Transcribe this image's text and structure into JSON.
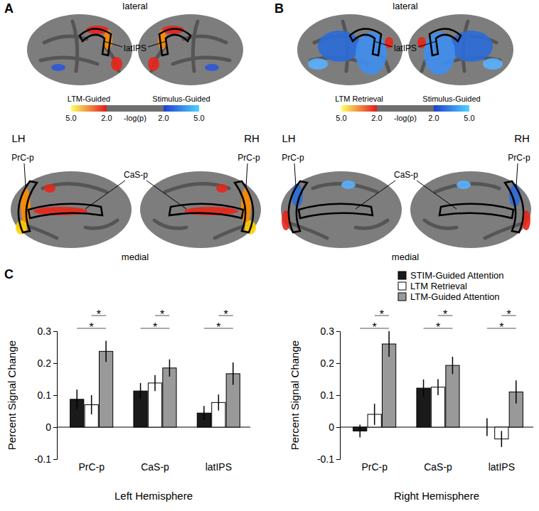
{
  "panel_labels": [
    "A",
    "B",
    "C"
  ],
  "brain_panels": [
    {
      "top_label": "lateral",
      "bottom_label": "medial",
      "hemispheres": [
        "LH",
        "RH"
      ],
      "rois": {
        "lateral": "latIPS",
        "posterior": "PrC-p",
        "medial": "CaS-p"
      },
      "colorbar": {
        "label": "-log(p)",
        "positive_label": "LTM-Guided",
        "negative_label": "Stimulus-Guided",
        "range": [
          2,
          5
        ],
        "positive_ticks": [
          {
            "value": 5,
            "label": "5.0"
          },
          {
            "value": 2,
            "label": "2.0"
          }
        ],
        "negative_ticks": [
          {
            "value": 2,
            "label": "2.0"
          },
          {
            "value": 5,
            "label": "5.0"
          }
        ]
      }
    },
    {
      "top_label": "lateral",
      "bottom_label": "medial",
      "hemispheres": [
        "LH",
        "RH"
      ],
      "rois": {
        "lateral": "latIPS",
        "posterior": "PrC-p",
        "medial": "CaS-p"
      },
      "colorbar": {
        "label": "-log(p)",
        "positive_label": "LTM Retrieval",
        "negative_label": "Stimulus-Guided",
        "range": [
          2,
          5
        ],
        "positive_ticks": [
          {
            "value": 5,
            "label": "5.0"
          },
          {
            "value": 2,
            "label": "2.0"
          }
        ],
        "negative_ticks": [
          {
            "value": 2,
            "label": "2.0"
          },
          {
            "value": 5,
            "label": "5.0"
          }
        ]
      }
    }
  ],
  "chart_data": [
    {
      "type": "bar",
      "x_label": "Left Hemisphere",
      "y_label": "Percent Signal Change",
      "categories": [
        "PrC-p",
        "CaS-p",
        "latIPS"
      ],
      "series": [
        {
          "name": "STIM-Guided Attention",
          "color": "#1a1a1a",
          "values": [
            0.087,
            0.113,
            0.044
          ],
          "errors": [
            0.03,
            0.025,
            0.022
          ]
        },
        {
          "name": "LTM Retrieval",
          "color": "#ffffff",
          "values": [
            0.07,
            0.138,
            0.077
          ],
          "errors": [
            0.03,
            0.025,
            0.025
          ]
        },
        {
          "name": "LTM-Guided Attention",
          "color": "#999999",
          "values": [
            0.237,
            0.185,
            0.167
          ],
          "errors": [
            0.033,
            0.027,
            0.035
          ]
        }
      ],
      "ylim": [
        -0.1,
        0.3
      ],
      "yticks": [
        -0.1,
        0,
        0.1,
        0.2,
        0.3
      ],
      "annotations": [
        {
          "category": 0,
          "from": 1,
          "to": 2,
          "text": "*"
        },
        {
          "category": 0,
          "from": 0,
          "to": 2,
          "text": "*"
        },
        {
          "category": 1,
          "from": 1,
          "to": 2,
          "text": "*"
        },
        {
          "category": 1,
          "from": 0,
          "to": 2,
          "text": "*"
        },
        {
          "category": 2,
          "from": 1,
          "to": 2,
          "text": "*"
        },
        {
          "category": 2,
          "from": 0,
          "to": 2,
          "text": "*"
        }
      ]
    },
    {
      "type": "bar",
      "x_label": "Right Hemisphere",
      "y_label": "Percent Signal Change",
      "categories": [
        "PrC-p",
        "CaS-p",
        "latIPS"
      ],
      "series": [
        {
          "name": "STIM-Guided Attention",
          "color": "#1a1a1a",
          "values": [
            -0.012,
            0.122,
            0.0
          ],
          "errors": [
            0.02,
            0.027,
            0.028
          ]
        },
        {
          "name": "LTM Retrieval",
          "color": "#ffffff",
          "values": [
            0.04,
            0.125,
            -0.037
          ],
          "errors": [
            0.033,
            0.025,
            0.025
          ]
        },
        {
          "name": "LTM-Guided Attention",
          "color": "#999999",
          "values": [
            0.26,
            0.193,
            0.11
          ],
          "errors": [
            0.04,
            0.027,
            0.036
          ]
        }
      ],
      "ylim": [
        -0.1,
        0.3
      ],
      "yticks": [
        -0.1,
        0,
        0.1,
        0.2,
        0.3
      ],
      "legend": "top-right",
      "annotations": [
        {
          "category": 0,
          "from": 1,
          "to": 2,
          "text": "*"
        },
        {
          "category": 0,
          "from": 0,
          "to": 2,
          "text": "*"
        },
        {
          "category": 1,
          "from": 1,
          "to": 2,
          "text": "*"
        },
        {
          "category": 1,
          "from": 0,
          "to": 2,
          "text": "*"
        },
        {
          "category": 2,
          "from": 1,
          "to": 2,
          "text": "*"
        },
        {
          "category": 2,
          "from": 0,
          "to": 2,
          "text": "*"
        }
      ]
    }
  ]
}
